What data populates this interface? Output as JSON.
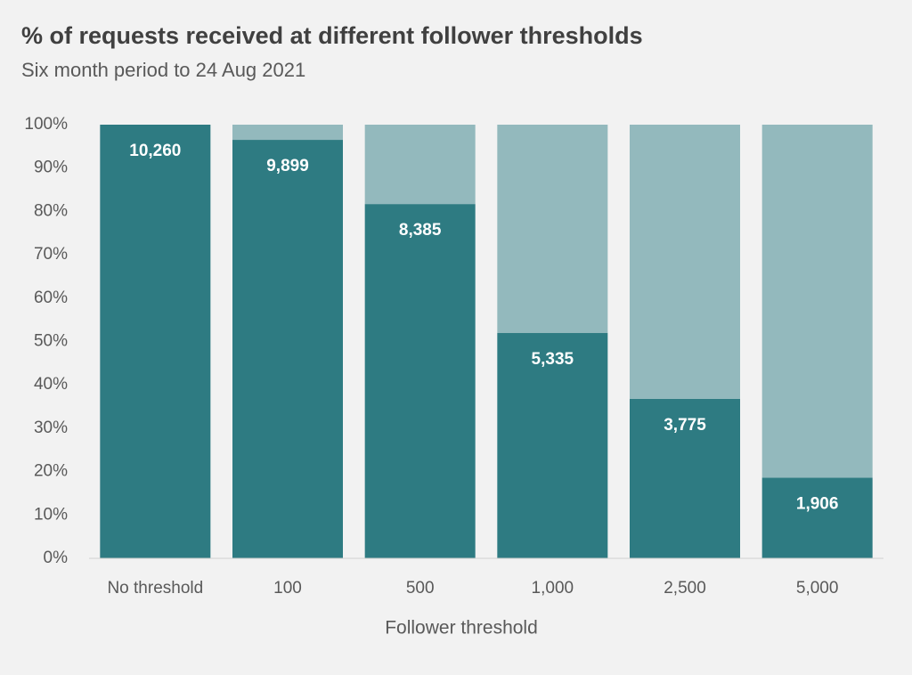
{
  "chart_data": {
    "type": "stacked_bar_100",
    "title": "% of requests received at different follower thresholds",
    "subtitle": "Six month period to 24 Aug 2021",
    "x_label": "Follower threshold",
    "categories": [
      "No threshold",
      "100",
      "500",
      "1,000",
      "2,500",
      "5,000"
    ],
    "series": [
      {
        "color": "#2e7b82",
        "values": [
          100,
          96.5,
          81.7,
          52.0,
          36.8,
          18.6
        ],
        "data_labels": [
          "10,260",
          "9,899",
          "8,385",
          "5,335",
          "3,775",
          "1,906"
        ]
      },
      {
        "color": "#93b9bd",
        "values": [
          0,
          3.5,
          18.3,
          48.0,
          63.2,
          81.4
        ]
      }
    ],
    "ylim": [
      0,
      100
    ],
    "yticks": [
      {
        "value": 0,
        "label": "0%"
      },
      {
        "value": 10,
        "label": "10%"
      },
      {
        "value": 20,
        "label": "20%"
      },
      {
        "value": 30,
        "label": "30%"
      },
      {
        "value": 40,
        "label": "40%"
      },
      {
        "value": 50,
        "label": "50%"
      },
      {
        "value": 60,
        "label": "60%"
      },
      {
        "value": 70,
        "label": "70%"
      },
      {
        "value": 80,
        "label": "80%"
      },
      {
        "value": 90,
        "label": "90%"
      },
      {
        "value": 100,
        "label": "100%"
      }
    ],
    "grid": false
  }
}
